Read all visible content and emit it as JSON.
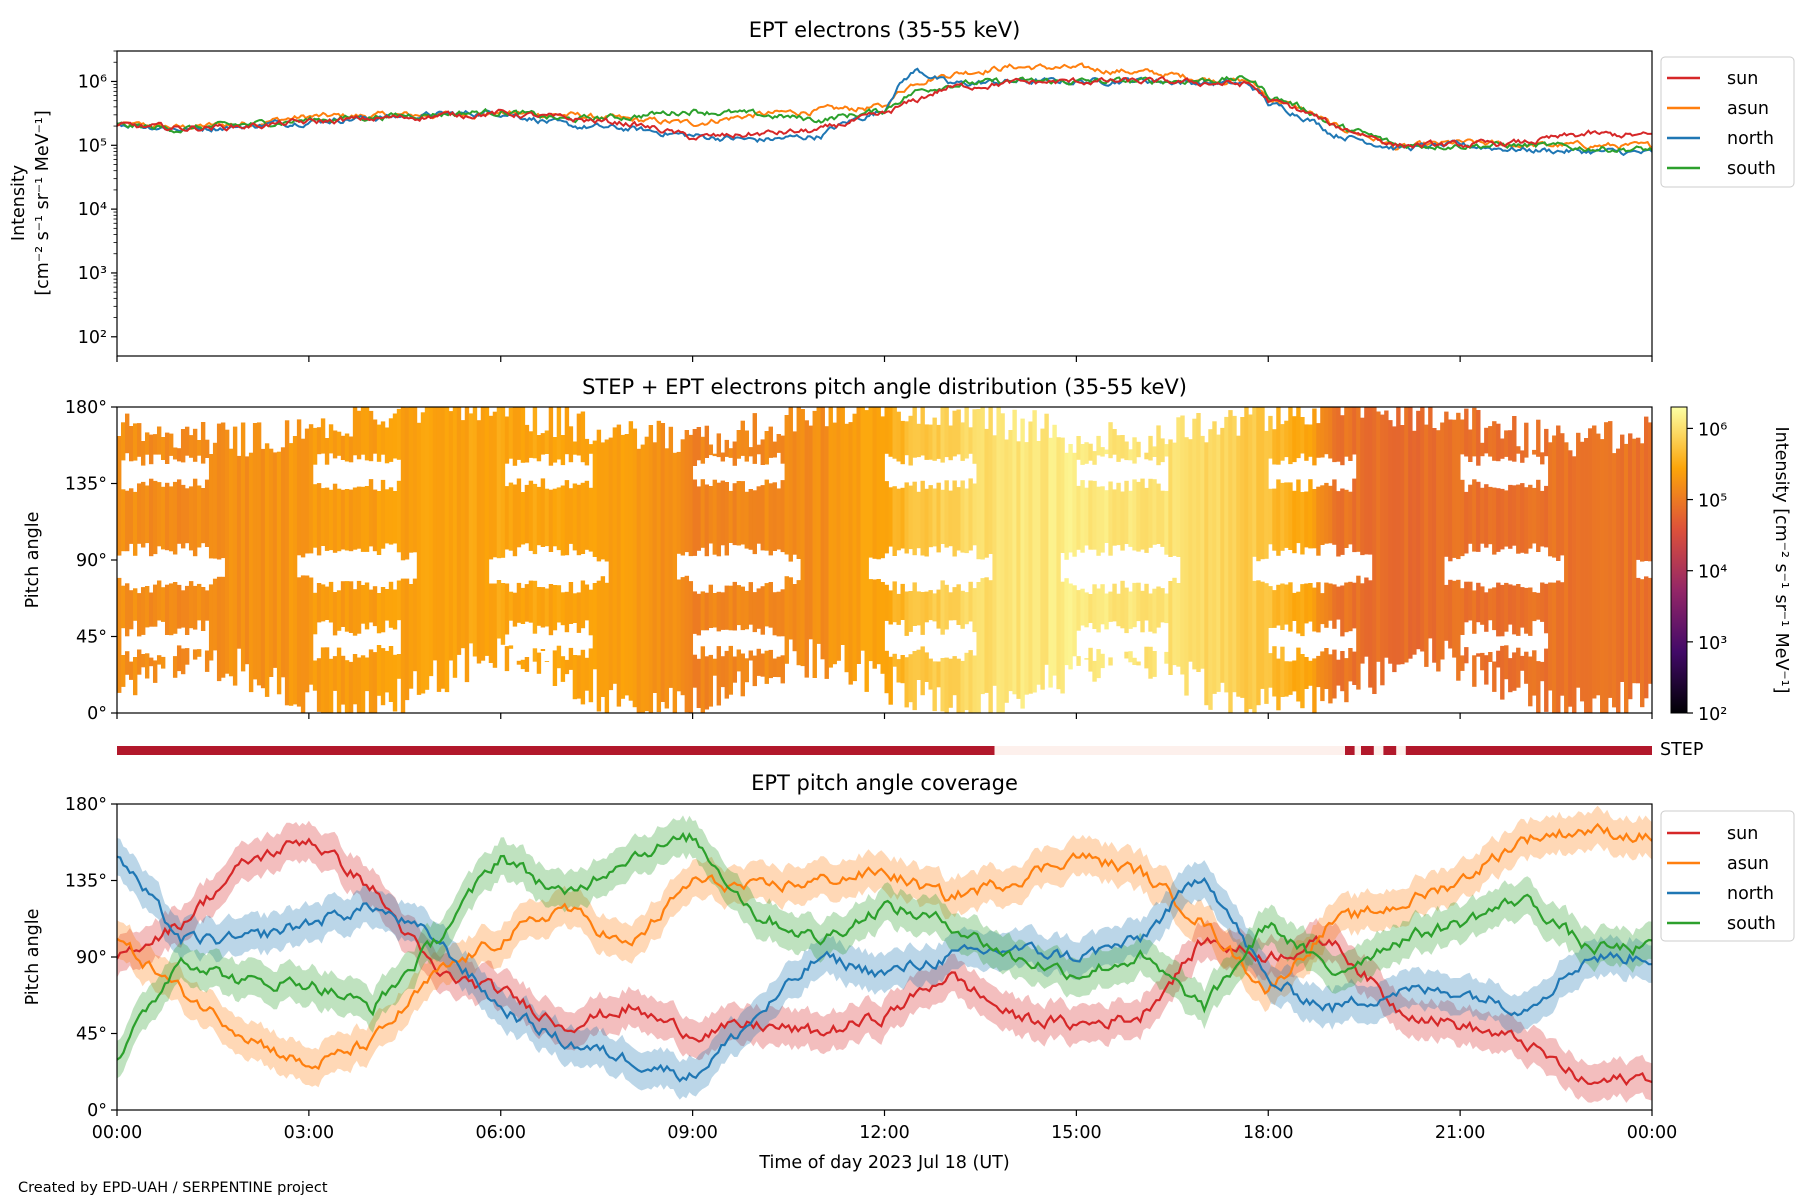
{
  "credit": "Created by EPD-UAH / SERPENTINE project",
  "colors": {
    "sun": "#d62728",
    "asun": "#ff7f0e",
    "north": "#1f77b4",
    "south": "#2ca02c",
    "step_on": "#b2182b",
    "step_off": "#fdf0ec"
  },
  "chart_data": [
    {
      "type": "line",
      "title": "EPT electrons (35-55 keV)",
      "ylabel_line1": "Intensity",
      "ylabel_line2": "[cm⁻² s⁻¹ sr⁻¹ MeV⁻¹]",
      "yscale": "log",
      "ylim": [
        50,
        3000000
      ],
      "yticks": [
        {
          "v": 100,
          "label": "10²"
        },
        {
          "v": 1000,
          "label": "10³"
        },
        {
          "v": 10000,
          "label": "10⁴"
        },
        {
          "v": 100000,
          "label": "10⁵"
        },
        {
          "v": 1000000,
          "label": "10⁶"
        }
      ],
      "legend_position": "outside-right",
      "x_hours": [
        0,
        1,
        2,
        3,
        4,
        5,
        6,
        7,
        8,
        9,
        10,
        11,
        12,
        12.5,
        13,
        14,
        15,
        16,
        17,
        17.7,
        18,
        19,
        20,
        21,
        22,
        23,
        24
      ],
      "series": [
        {
          "name": "sun",
          "values": [
            200000,
            185000,
            200000,
            230000,
            260000,
            290000,
            320000,
            260000,
            220000,
            130000,
            150000,
            170000,
            300000,
            500000,
            800000,
            950000,
            1000000,
            1000000,
            950000,
            900000,
            500000,
            200000,
            100000,
            100000,
            110000,
            150000,
            140000
          ]
        },
        {
          "name": "asun",
          "values": [
            210000,
            190000,
            220000,
            280000,
            290000,
            300000,
            320000,
            300000,
            250000,
            220000,
            300000,
            350000,
            400000,
            1000000,
            1300000,
            1700000,
            1600000,
            1400000,
            1100000,
            1000000,
            550000,
            200000,
            90000,
            110000,
            100000,
            100000,
            95000
          ]
        },
        {
          "name": "north",
          "values": [
            220000,
            180000,
            200000,
            240000,
            270000,
            300000,
            330000,
            200000,
            180000,
            140000,
            120000,
            140000,
            350000,
            1500000,
            900000,
            1000000,
            1000000,
            1050000,
            950000,
            900000,
            450000,
            150000,
            90000,
            100000,
            85000,
            80000,
            75000
          ]
        },
        {
          "name": "south",
          "values": [
            205000,
            180000,
            210000,
            250000,
            280000,
            310000,
            340000,
            250000,
            280000,
            350000,
            300000,
            250000,
            350000,
            700000,
            900000,
            1000000,
            1000000,
            1000000,
            1050000,
            1100000,
            600000,
            200000,
            100000,
            100000,
            100000,
            90000,
            85000
          ]
        }
      ]
    },
    {
      "type": "heatmap",
      "title": "STEP + EPT electrons pitch angle distribution (35-55 keV)",
      "ylabel": "Pitch angle",
      "yticks": [
        "0°",
        "45°",
        "90°",
        "135°",
        "180°"
      ],
      "ylim": [
        0,
        180
      ],
      "colorbar_label": "Intensity [cm⁻² s⁻¹ sr⁻¹ MeV⁻¹]",
      "colorbar_ticks": [
        "10²",
        "10³",
        "10⁴",
        "10⁵",
        "10⁶"
      ],
      "colorbar_range": [
        100,
        2000000
      ],
      "x_hours": [
        0,
        1,
        2,
        3,
        4,
        5,
        6,
        7,
        8,
        9,
        10,
        11,
        12,
        13,
        14,
        15,
        16,
        17,
        18,
        19,
        20,
        21,
        22,
        23,
        24
      ],
      "intensity": [
        160000,
        150000,
        170000,
        200000,
        230000,
        260000,
        280000,
        250000,
        230000,
        120000,
        140000,
        160000,
        300000,
        700000,
        1100000,
        1300000,
        1100000,
        900000,
        500000,
        90000,
        70000,
        80000,
        80000,
        90000,
        85000
      ]
    },
    {
      "type": "bar",
      "label": "STEP",
      "segments_hours": [
        [
          0,
          13.72
        ],
        [
          19.2,
          19.35
        ],
        [
          19.45,
          19.65
        ],
        [
          19.8,
          20.0
        ],
        [
          20.15,
          24.0
        ]
      ]
    },
    {
      "type": "line",
      "title": "EPT pitch angle coverage",
      "ylabel": "Pitch angle",
      "xlabel": "Time of day 2023 Jul 18 (UT)",
      "ylim": [
        0,
        180
      ],
      "yticks": [
        "0°",
        "45°",
        "90°",
        "135°",
        "180°"
      ],
      "xticks": [
        "00:00",
        "03:00",
        "06:00",
        "09:00",
        "12:00",
        "15:00",
        "18:00",
        "21:00",
        "00:00"
      ],
      "legend_position": "outside-right",
      "x_hours": [
        0,
        1,
        2,
        3,
        4,
        5,
        6,
        7,
        8,
        9,
        10,
        11,
        12,
        13,
        14,
        15,
        16,
        17,
        18,
        19,
        20,
        21,
        22,
        23,
        24
      ],
      "series": [
        {
          "name": "sun",
          "values": [
            90,
            110,
            145,
            160,
            130,
            80,
            70,
            50,
            60,
            45,
            50,
            45,
            55,
            80,
            55,
            50,
            55,
            100,
            90,
            100,
            60,
            50,
            40,
            15,
            20
          ]
        },
        {
          "name": "asun",
          "values": [
            100,
            70,
            45,
            25,
            40,
            80,
            100,
            120,
            95,
            135,
            130,
            135,
            140,
            125,
            135,
            150,
            140,
            110,
            70,
            110,
            120,
            135,
            160,
            165,
            160
          ]
        },
        {
          "name": "north",
          "values": [
            150,
            100,
            100,
            110,
            120,
            100,
            60,
            40,
            30,
            20,
            55,
            90,
            80,
            90,
            95,
            90,
            100,
            140,
            75,
            60,
            70,
            70,
            60,
            90,
            90
          ]
        },
        {
          "name": "south",
          "values": [
            30,
            90,
            75,
            75,
            60,
            100,
            150,
            125,
            150,
            160,
            115,
            100,
            120,
            110,
            90,
            80,
            90,
            60,
            110,
            80,
            100,
            110,
            125,
            95,
            95
          ]
        }
      ]
    }
  ]
}
